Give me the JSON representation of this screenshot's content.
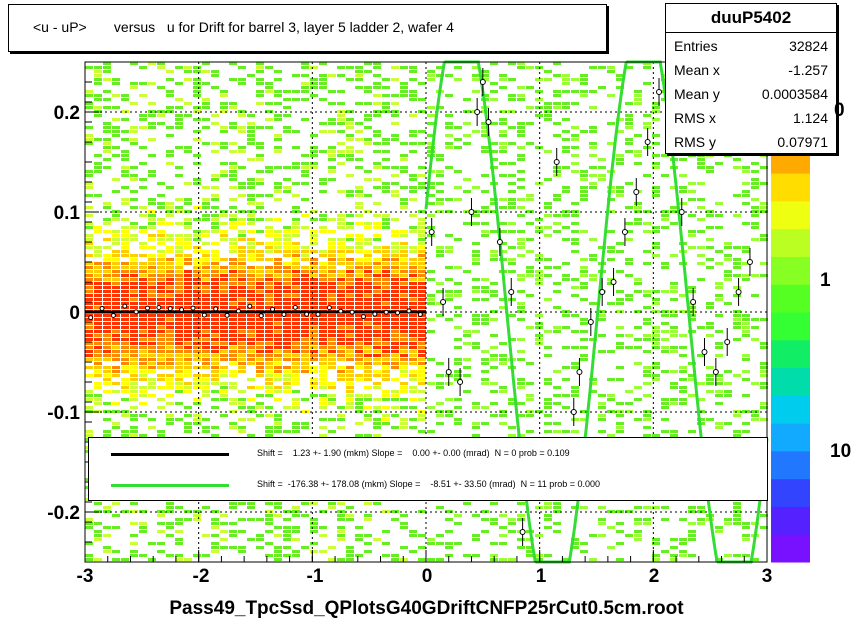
{
  "title": "<u - uP>       versus   u for Drift for barrel 3, layer 5 ladder 2, wafer 4",
  "stats": {
    "name": "duuP5402",
    "rows": [
      {
        "label": "Entries",
        "value": "32824"
      },
      {
        "label": "Mean x",
        "value": "-1.257"
      },
      {
        "label": "Mean y",
        "value": "0.0003584"
      },
      {
        "label": "RMS x",
        "value": "1.124"
      },
      {
        "label": "RMS y",
        "value": "0.07971"
      }
    ]
  },
  "legend": [
    {
      "text": "Shift =    1.23 +- 1.90 (mkm) Slope =    0.00 +- 0.00 (mrad)  N = 0 prob = 0.109",
      "color": "#000000"
    },
    {
      "text": "Shift =  -176.38 +- 178.08 (mkm) Slope =    -8.51 +- 33.50 (mrad)  N = 11 prob = 0.000",
      "color": "#33dd33"
    }
  ],
  "x_title": "Pass49_TpcSsd_QPlotsG40GDriftCNFP25rCut0.5cm.root",
  "colorbar_labels": [
    "0",
    "1",
    "10"
  ],
  "chart_data": {
    "type": "heatmap",
    "xlim": [
      -3,
      3
    ],
    "ylim": [
      -0.25,
      0.25
    ],
    "xticks": [
      "-3",
      "-2",
      "-1",
      "0",
      "1",
      "2",
      "3"
    ],
    "yticks": [
      "-0.2",
      "-0.1",
      "0",
      "0.1",
      "0.2"
    ],
    "grid": true,
    "profile_points": [
      {
        "x": 0.05,
        "y": 0.08
      },
      {
        "x": 0.15,
        "y": 0.01
      },
      {
        "x": 0.2,
        "y": -0.06
      },
      {
        "x": 0.3,
        "y": -0.07
      },
      {
        "x": 0.4,
        "y": 0.1
      },
      {
        "x": 0.45,
        "y": 0.2
      },
      {
        "x": 0.5,
        "y": 0.23
      },
      {
        "x": 0.55,
        "y": 0.19
      },
      {
        "x": 0.65,
        "y": 0.07
      },
      {
        "x": 0.75,
        "y": 0.02
      },
      {
        "x": 0.85,
        "y": -0.22
      },
      {
        "x": 1.15,
        "y": 0.15
      },
      {
        "x": 1.3,
        "y": -0.1
      },
      {
        "x": 1.35,
        "y": -0.06
      },
      {
        "x": 1.45,
        "y": -0.01
      },
      {
        "x": 1.55,
        "y": 0.02
      },
      {
        "x": 1.65,
        "y": 0.03
      },
      {
        "x": 1.75,
        "y": 0.08
      },
      {
        "x": 1.85,
        "y": 0.12
      },
      {
        "x": 1.95,
        "y": 0.17
      },
      {
        "x": 2.05,
        "y": 0.22
      },
      {
        "x": 2.15,
        "y": 0.19
      },
      {
        "x": 2.25,
        "y": 0.1
      },
      {
        "x": 2.35,
        "y": 0.01
      },
      {
        "x": 2.45,
        "y": -0.04
      },
      {
        "x": 2.55,
        "y": -0.06
      },
      {
        "x": 2.65,
        "y": -0.03
      },
      {
        "x": 2.75,
        "y": 0.02
      },
      {
        "x": 2.85,
        "y": 0.05
      }
    ],
    "black_fit": {
      "x0": -3,
      "x1": 0,
      "y": 0.0
    },
    "green_fit": {
      "x0": 0,
      "x1": 3,
      "amplitude": 0.3,
      "period": 1.6,
      "phase": 0.35
    }
  }
}
